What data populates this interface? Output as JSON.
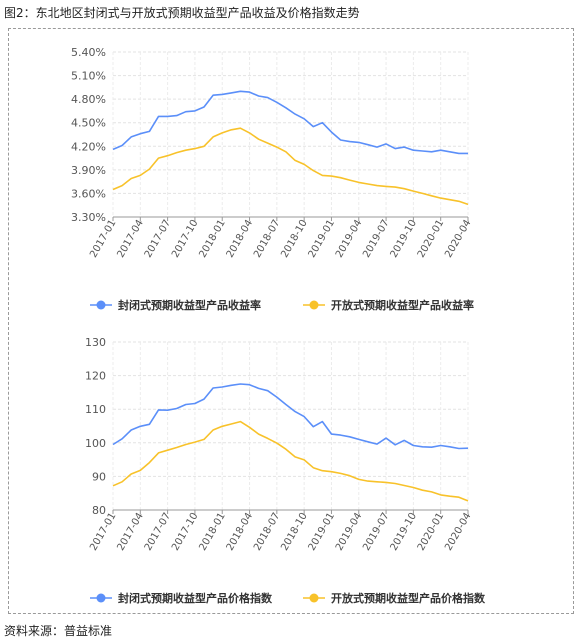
{
  "figure": {
    "title": "图2：东北地区封闭式与开放式预期收益型产品收益及价格指数走势",
    "source": "资料来源：普益标准"
  },
  "colors": {
    "blue": "#5b8ff9",
    "yellow": "#f8c22a"
  },
  "chart_data": [
    {
      "type": "line",
      "ylim": [
        3.3,
        5.4
      ],
      "yticks": [
        "3.30%",
        "3.60%",
        "3.90%",
        "4.20%",
        "4.50%",
        "4.80%",
        "5.10%",
        "5.40%"
      ],
      "ytick_values": [
        3.3,
        3.6,
        3.9,
        4.2,
        4.5,
        4.8,
        5.1,
        5.4
      ],
      "categories": [
        "2017-01",
        "2017-02",
        "2017-03",
        "2017-04",
        "2017-05",
        "2017-06",
        "2017-07",
        "2017-08",
        "2017-09",
        "2017-10",
        "2017-11",
        "2017-12",
        "2018-01",
        "2018-02",
        "2018-03",
        "2018-04",
        "2018-05",
        "2018-06",
        "2018-07",
        "2018-08",
        "2018-09",
        "2018-10",
        "2018-11",
        "2018-12",
        "2019-01",
        "2019-02",
        "2019-03",
        "2019-04",
        "2019-05",
        "2019-06",
        "2019-07",
        "2019-08",
        "2019-09",
        "2019-10",
        "2019-11",
        "2019-12",
        "2020-01",
        "2020-02",
        "2020-03",
        "2020-04"
      ],
      "xtick_labels": [
        "2017-01",
        "2017-04",
        "2017-07",
        "2017-10",
        "2018-01",
        "2018-04",
        "2018-07",
        "2018-10",
        "2019-01",
        "2019-04",
        "2019-07",
        "2019-10",
        "2020-01",
        "2020-04"
      ],
      "series": [
        {
          "name": "封闭式预期收益型产品收益率",
          "color": "#5b8ff9",
          "values": [
            4.16,
            4.21,
            4.32,
            4.36,
            4.39,
            4.58,
            4.58,
            4.59,
            4.64,
            4.65,
            4.7,
            4.85,
            4.86,
            4.88,
            4.9,
            4.89,
            4.84,
            4.82,
            4.76,
            4.69,
            4.61,
            4.55,
            4.45,
            4.5,
            4.38,
            4.28,
            4.26,
            4.25,
            4.22,
            4.19,
            4.23,
            4.17,
            4.19,
            4.15,
            4.14,
            4.13,
            4.15,
            4.13,
            4.11,
            4.11
          ]
        },
        {
          "name": "开放式预期收益型产品收益率",
          "color": "#f8c22a",
          "values": [
            3.65,
            3.7,
            3.79,
            3.83,
            3.91,
            4.05,
            4.08,
            4.12,
            4.15,
            4.17,
            4.2,
            4.32,
            4.37,
            4.41,
            4.43,
            4.37,
            4.29,
            4.24,
            4.19,
            4.13,
            4.02,
            3.97,
            3.89,
            3.83,
            3.82,
            3.8,
            3.77,
            3.74,
            3.72,
            3.7,
            3.69,
            3.68,
            3.66,
            3.63,
            3.6,
            3.57,
            3.54,
            3.52,
            3.5,
            3.46
          ]
        }
      ]
    },
    {
      "type": "line",
      "ylim": [
        80,
        130
      ],
      "yticks": [
        "80",
        "90",
        "100",
        "110",
        "120",
        "130"
      ],
      "ytick_values": [
        80,
        90,
        100,
        110,
        120,
        130
      ],
      "categories": [
        "2017-01",
        "2017-02",
        "2017-03",
        "2017-04",
        "2017-05",
        "2017-06",
        "2017-07",
        "2017-08",
        "2017-09",
        "2017-10",
        "2017-11",
        "2017-12",
        "2018-01",
        "2018-02",
        "2018-03",
        "2018-04",
        "2018-05",
        "2018-06",
        "2018-07",
        "2018-08",
        "2018-09",
        "2018-10",
        "2018-11",
        "2018-12",
        "2019-01",
        "2019-02",
        "2019-03",
        "2019-04",
        "2019-05",
        "2019-06",
        "2019-07",
        "2019-08",
        "2019-09",
        "2019-10",
        "2019-11",
        "2019-12",
        "2020-01",
        "2020-02",
        "2020-03",
        "2020-04"
      ],
      "xtick_labels": [
        "2017-01",
        "2017-04",
        "2017-07",
        "2017-10",
        "2018-01",
        "2018-04",
        "2018-07",
        "2018-10",
        "2019-01",
        "2019-04",
        "2019-07",
        "2019-10",
        "2020-01",
        "2020-04"
      ],
      "series": [
        {
          "name": "封闭式预期收益型产品价格指数",
          "color": "#5b8ff9",
          "values": [
            99.5,
            101.2,
            103.8,
            104.9,
            105.5,
            109.8,
            109.7,
            110.2,
            111.4,
            111.7,
            113.0,
            116.3,
            116.6,
            117.1,
            117.5,
            117.3,
            116.2,
            115.5,
            113.6,
            111.4,
            109.3,
            107.8,
            104.8,
            106.3,
            102.6,
            102.3,
            101.8,
            101.0,
            100.3,
            99.6,
            101.4,
            99.4,
            100.7,
            99.2,
            98.8,
            98.7,
            99.2,
            98.8,
            98.3,
            98.4
          ]
        },
        {
          "name": "开放式预期收益型产品价格指数",
          "color": "#f8c22a",
          "values": [
            87.2,
            88.4,
            90.7,
            91.8,
            94.1,
            97.0,
            97.8,
            98.6,
            99.5,
            100.2,
            101.0,
            103.8,
            104.9,
            105.6,
            106.3,
            104.6,
            102.6,
            101.3,
            99.9,
            98.1,
            95.8,
            94.9,
            92.6,
            91.7,
            91.4,
            90.9,
            90.2,
            89.1,
            88.6,
            88.4,
            88.2,
            87.9,
            87.3,
            86.7,
            85.9,
            85.4,
            84.5,
            84.1,
            83.8,
            82.7
          ]
        }
      ]
    }
  ]
}
